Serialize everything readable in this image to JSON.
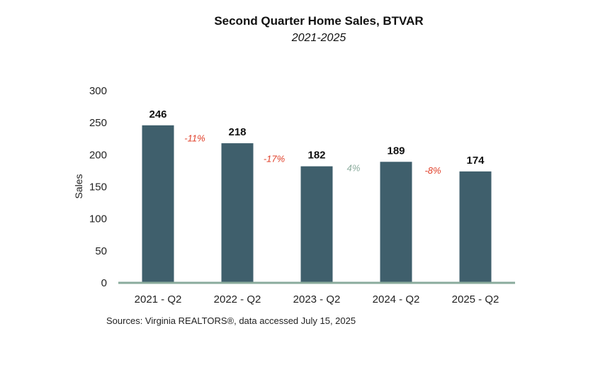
{
  "title": "Second Quarter Home Sales, BTVAR",
  "subtitle": "2021-2025",
  "source": "Sources: Virginia REALTORS®, data accessed July 15, 2025",
  "colors": {
    "bar": "#3f5f6c",
    "baseline": "#8aab9c",
    "decrease": "#e0402a",
    "increase": "#8aab9c"
  },
  "chart_data": {
    "type": "bar",
    "categories": [
      "2021 - Q2",
      "2022 - Q2",
      "2023 - Q2",
      "2024 - Q2",
      "2025 - Q2"
    ],
    "values": [
      246,
      218,
      182,
      189,
      174
    ],
    "changes": [
      "-11%",
      "-17%",
      "4%",
      "-8%"
    ],
    "ylabel": "Sales",
    "ylim": [
      0,
      300
    ],
    "yticks": [
      0,
      50,
      100,
      150,
      200,
      250,
      300
    ],
    "grid": false,
    "legend": "none"
  }
}
